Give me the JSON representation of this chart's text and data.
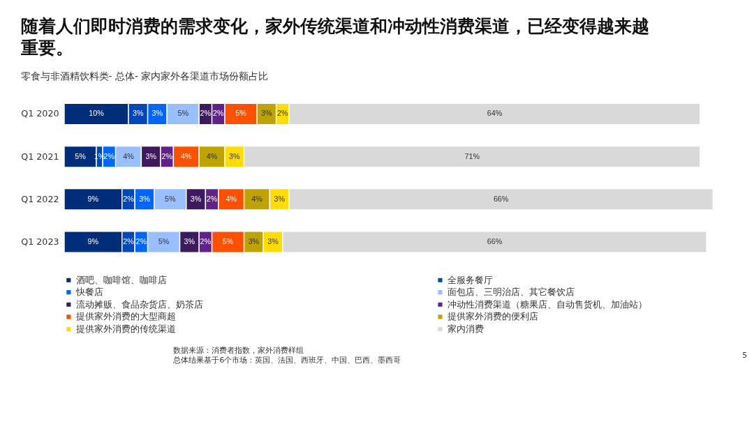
{
  "chart_data": {
    "type": "bar",
    "orientation": "horizontal",
    "stacked": true,
    "title": "随着人们即时消费的需求变化，家外传统渠道和冲动性消费渠道，已经变得越来越重要。",
    "subtitle": "零食与非酒精饮料类- 总体- 家内家外各渠道市场份额占比",
    "categories": [
      "Q1 2020",
      "Q1 2021",
      "Q1 2022",
      "Q1 2023"
    ],
    "series": [
      {
        "name": "酒吧、咖啡馆、咖啡店",
        "color": "#002d7a",
        "values": [
          10,
          5,
          9,
          9
        ],
        "value_labels": [
          "10%",
          "5%",
          "9%",
          "9%"
        ]
      },
      {
        "name": "全服务餐厅",
        "color": "#0047bb",
        "values": [
          3,
          1,
          2,
          2
        ],
        "value_labels": [
          "3%",
          "1%",
          "2%",
          "2%"
        ]
      },
      {
        "name": "快餐店",
        "color": "#0066ff",
        "values": [
          3,
          2,
          3,
          2
        ],
        "value_labels": [
          "3%",
          "2%",
          "3%",
          "2%"
        ]
      },
      {
        "name": "面包店、三明治店、其它餐饮店",
        "color": "#99bfff",
        "values": [
          5,
          4,
          5,
          5
        ],
        "value_labels": [
          "5%",
          "4%",
          "5%",
          "5%"
        ]
      },
      {
        "name": "流动摊贩、食品杂货店、奶茶店",
        "color": "#3d1a5b",
        "values": [
          2,
          3,
          3,
          3
        ],
        "value_labels": [
          "2%",
          "3%",
          "3%",
          "3%"
        ]
      },
      {
        "name": "冲动性消费渠道（糖果店、自动售货机、加油站）",
        "color": "#5f2289",
        "values": [
          2,
          2,
          2,
          2
        ],
        "value_labels": [
          "2%",
          "2%",
          "2%",
          "2%"
        ]
      },
      {
        "name": "提供家外消费的大型商超",
        "color": "#ff5000",
        "values": [
          5,
          4,
          4,
          5
        ],
        "value_labels": [
          "5%",
          "4%",
          "4%",
          "5%"
        ]
      },
      {
        "name": "提供家外消费的便利店",
        "color": "#bfa300",
        "values": [
          3,
          4,
          4,
          3
        ],
        "value_labels": [
          "3%",
          "4%",
          "4%",
          "3%"
        ]
      },
      {
        "name": "提供家外消费的传统渠道",
        "color": "#ffdd00",
        "values": [
          2,
          3,
          3,
          3
        ],
        "value_labels": [
          "2%",
          "3%",
          "3%",
          "3%"
        ]
      },
      {
        "name": "家内消费",
        "color": "#d9d9d9",
        "values": [
          64,
          71,
          66,
          66
        ],
        "value_labels": [
          "64%",
          "71%",
          "66%",
          "66%"
        ]
      }
    ],
    "legend": "bottom",
    "grid": false,
    "annotations": [
      "数据来源：消费者指数，家外消费样组",
      "总体结果基于6个市场：英国、法国、西班牙、中国、巴西、墨西哥",
      "5"
    ]
  }
}
